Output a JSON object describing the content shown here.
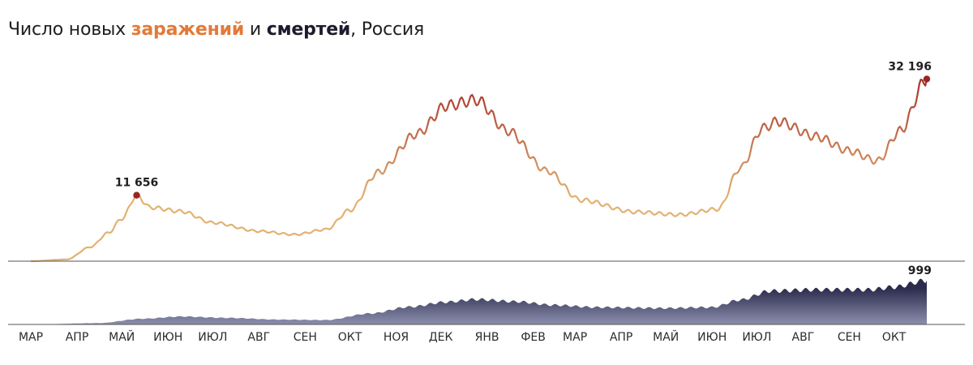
{
  "title": {
    "prefix": "Число новых ",
    "cases_word": "заражений",
    "middle": " и ",
    "deaths_word": "смертей",
    "suffix": ", Россия"
  },
  "colors": {
    "cases_low": "#e2b272",
    "cases_high": "#a8322a",
    "deaths_fill_top": "#2b2b4c",
    "deaths_fill_bottom": "#8c8fae",
    "peak_dot": "#9a2525",
    "axis": "#555555"
  },
  "chart_data": [
    {
      "type": "line",
      "series": [
        {
          "name": "заражений",
          "unit": "cases per day"
        }
      ],
      "x_range": [
        "2020-03-01",
        "2021-10-23"
      ],
      "ylim": [
        0,
        40000
      ],
      "anchors": [
        [
          "2020-03-01",
          0
        ],
        [
          "2020-03-25",
          300
        ],
        [
          "2020-04-10",
          2500
        ],
        [
          "2020-04-22",
          5000
        ],
        [
          "2020-05-01",
          7500
        ],
        [
          "2020-05-11",
          11656
        ],
        [
          "2020-05-20",
          9500
        ],
        [
          "2020-06-10",
          8800
        ],
        [
          "2020-07-01",
          6800
        ],
        [
          "2020-08-01",
          5300
        ],
        [
          "2020-08-25",
          4700
        ],
        [
          "2020-09-15",
          5600
        ],
        [
          "2020-10-01",
          9000
        ],
        [
          "2020-10-20",
          15700
        ],
        [
          "2020-11-15",
          22500
        ],
        [
          "2020-12-05",
          27500
        ],
        [
          "2020-12-25",
          28500
        ],
        [
          "2021-01-15",
          23000
        ],
        [
          "2021-02-10",
          16000
        ],
        [
          "2021-03-05",
          10800
        ],
        [
          "2021-04-10",
          8700
        ],
        [
          "2021-05-10",
          8200
        ],
        [
          "2021-06-05",
          9200
        ],
        [
          "2021-06-20",
          16500
        ],
        [
          "2021-07-05",
          23500
        ],
        [
          "2021-07-15",
          24700
        ],
        [
          "2021-08-10",
          22000
        ],
        [
          "2021-09-01",
          19500
        ],
        [
          "2021-09-20",
          17700
        ],
        [
          "2021-10-05",
          23000
        ],
        [
          "2021-10-23",
          32196
        ]
      ],
      "annotations": [
        {
          "date": "2020-05-11",
          "value": 11656,
          "label": "11 656"
        },
        {
          "date": "2021-10-23",
          "value": 32196,
          "label": "32 196"
        }
      ]
    },
    {
      "type": "area",
      "series": [
        {
          "name": "смертей",
          "unit": "deaths per day"
        }
      ],
      "x_range": [
        "2020-03-01",
        "2021-10-23"
      ],
      "ylim": [
        0,
        1200
      ],
      "anchors": [
        [
          "2020-03-01",
          0
        ],
        [
          "2020-04-15",
          30
        ],
        [
          "2020-05-15",
          130
        ],
        [
          "2020-06-10",
          180
        ],
        [
          "2020-07-10",
          150
        ],
        [
          "2020-08-15",
          110
        ],
        [
          "2020-09-15",
          100
        ],
        [
          "2020-10-15",
          250
        ],
        [
          "2020-11-10",
          400
        ],
        [
          "2020-12-05",
          510
        ],
        [
          "2020-12-25",
          570
        ],
        [
          "2021-01-20",
          520
        ],
        [
          "2021-02-15",
          440
        ],
        [
          "2021-03-15",
          390
        ],
        [
          "2021-05-01",
          370
        ],
        [
          "2021-06-01",
          390
        ],
        [
          "2021-06-20",
          560
        ],
        [
          "2021-07-10",
          760
        ],
        [
          "2021-08-10",
          790
        ],
        [
          "2021-09-15",
          790
        ],
        [
          "2021-10-01",
          850
        ],
        [
          "2021-10-23",
          999
        ]
      ],
      "annotations": [
        {
          "date": "2021-10-23",
          "value": 999,
          "label": "999"
        }
      ]
    }
  ],
  "x_axis": {
    "ticks": [
      {
        "label": "МАР",
        "date": "2020-03-01"
      },
      {
        "label": "АПР",
        "date": "2020-04-01"
      },
      {
        "label": "МАЙ",
        "date": "2020-05-01"
      },
      {
        "label": "ИЮН",
        "date": "2020-06-01"
      },
      {
        "label": "ИЮЛ",
        "date": "2020-07-01"
      },
      {
        "label": "АВГ",
        "date": "2020-08-01"
      },
      {
        "label": "СЕН",
        "date": "2020-09-01"
      },
      {
        "label": "ОКТ",
        "date": "2020-10-01"
      },
      {
        "label": "НОЯ",
        "date": "2020-11-01"
      },
      {
        "label": "ДЕК",
        "date": "2020-12-01"
      },
      {
        "label": "ЯНВ",
        "date": "2021-01-01"
      },
      {
        "label": "ФЕВ",
        "date": "2021-02-01"
      },
      {
        "label": "МАР",
        "date": "2021-03-01"
      },
      {
        "label": "АПР",
        "date": "2021-04-01"
      },
      {
        "label": "МАЙ",
        "date": "2021-05-01"
      },
      {
        "label": "ИЮН",
        "date": "2021-06-01"
      },
      {
        "label": "ИЮЛ",
        "date": "2021-07-01"
      },
      {
        "label": "АВГ",
        "date": "2021-08-01"
      },
      {
        "label": "СЕН",
        "date": "2021-09-01"
      },
      {
        "label": "ОКТ",
        "date": "2021-10-01"
      }
    ]
  }
}
